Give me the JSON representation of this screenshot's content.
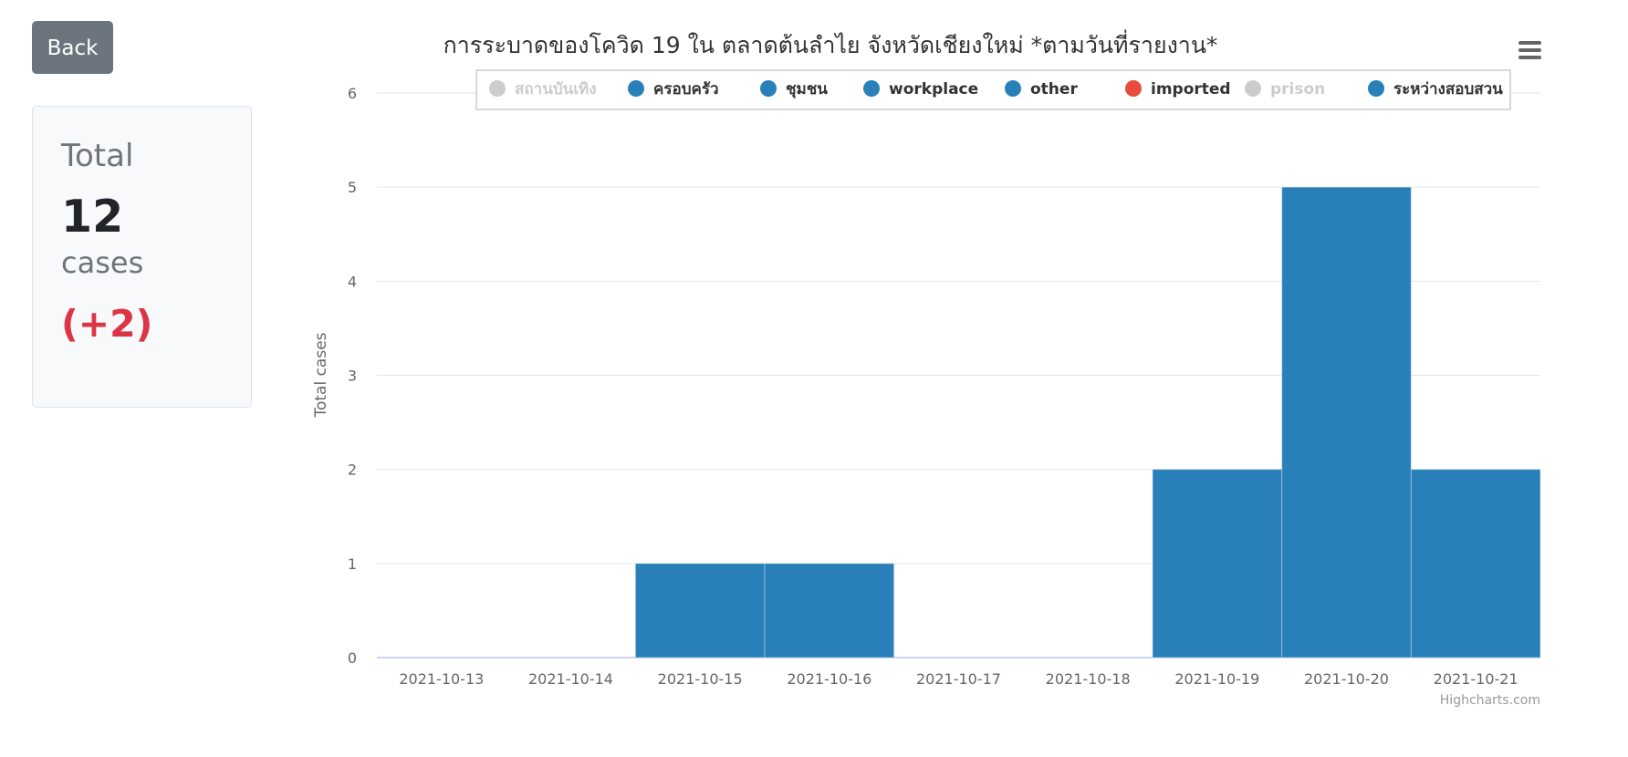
{
  "back_button": {
    "label": "Back"
  },
  "summary": {
    "title": "Total",
    "count": "12",
    "unit": "cases",
    "delta": "(+2)"
  },
  "colors": {
    "bar": "#2980b9",
    "delta": "#dc3545",
    "legend_hidden": "#cccccc",
    "legend_text": "#333333",
    "imported_marker": "#e74c3c"
  },
  "chart_data": {
    "type": "bar",
    "title": "การระบาดของโควิด 19 ใน ตลาดต้นลำไย จังหวัดเชียงใหม่ *ตามวันที่รายงาน*",
    "xlabel": "",
    "ylabel": "Total cases",
    "ylim": [
      0,
      6
    ],
    "yticks": [
      0,
      1,
      2,
      3,
      4,
      5,
      6
    ],
    "categories": [
      "2021-10-13",
      "2021-10-14",
      "2021-10-15",
      "2021-10-16",
      "2021-10-17",
      "2021-10-18",
      "2021-10-19",
      "2021-10-20",
      "2021-10-21"
    ],
    "values": [
      0,
      0,
      1,
      1,
      0,
      0,
      2,
      5,
      2
    ],
    "grid": true,
    "legend_position": "top",
    "legend": [
      {
        "name": "สถานบันเทิง",
        "color": "#cccccc",
        "visible": false
      },
      {
        "name": "ครอบครัว",
        "color": "#2980b9",
        "visible": true
      },
      {
        "name": "ชุมชน",
        "color": "#2980b9",
        "visible": true
      },
      {
        "name": "workplace",
        "color": "#2980b9",
        "visible": true
      },
      {
        "name": "other",
        "color": "#2980b9",
        "visible": true
      },
      {
        "name": "imported",
        "color": "#e74c3c",
        "visible": true
      },
      {
        "name": "prison",
        "color": "#cccccc",
        "visible": false
      },
      {
        "name": "ระหว่างสอบสวน",
        "color": "#2980b9",
        "visible": true
      }
    ],
    "credits": "Highcharts.com"
  }
}
